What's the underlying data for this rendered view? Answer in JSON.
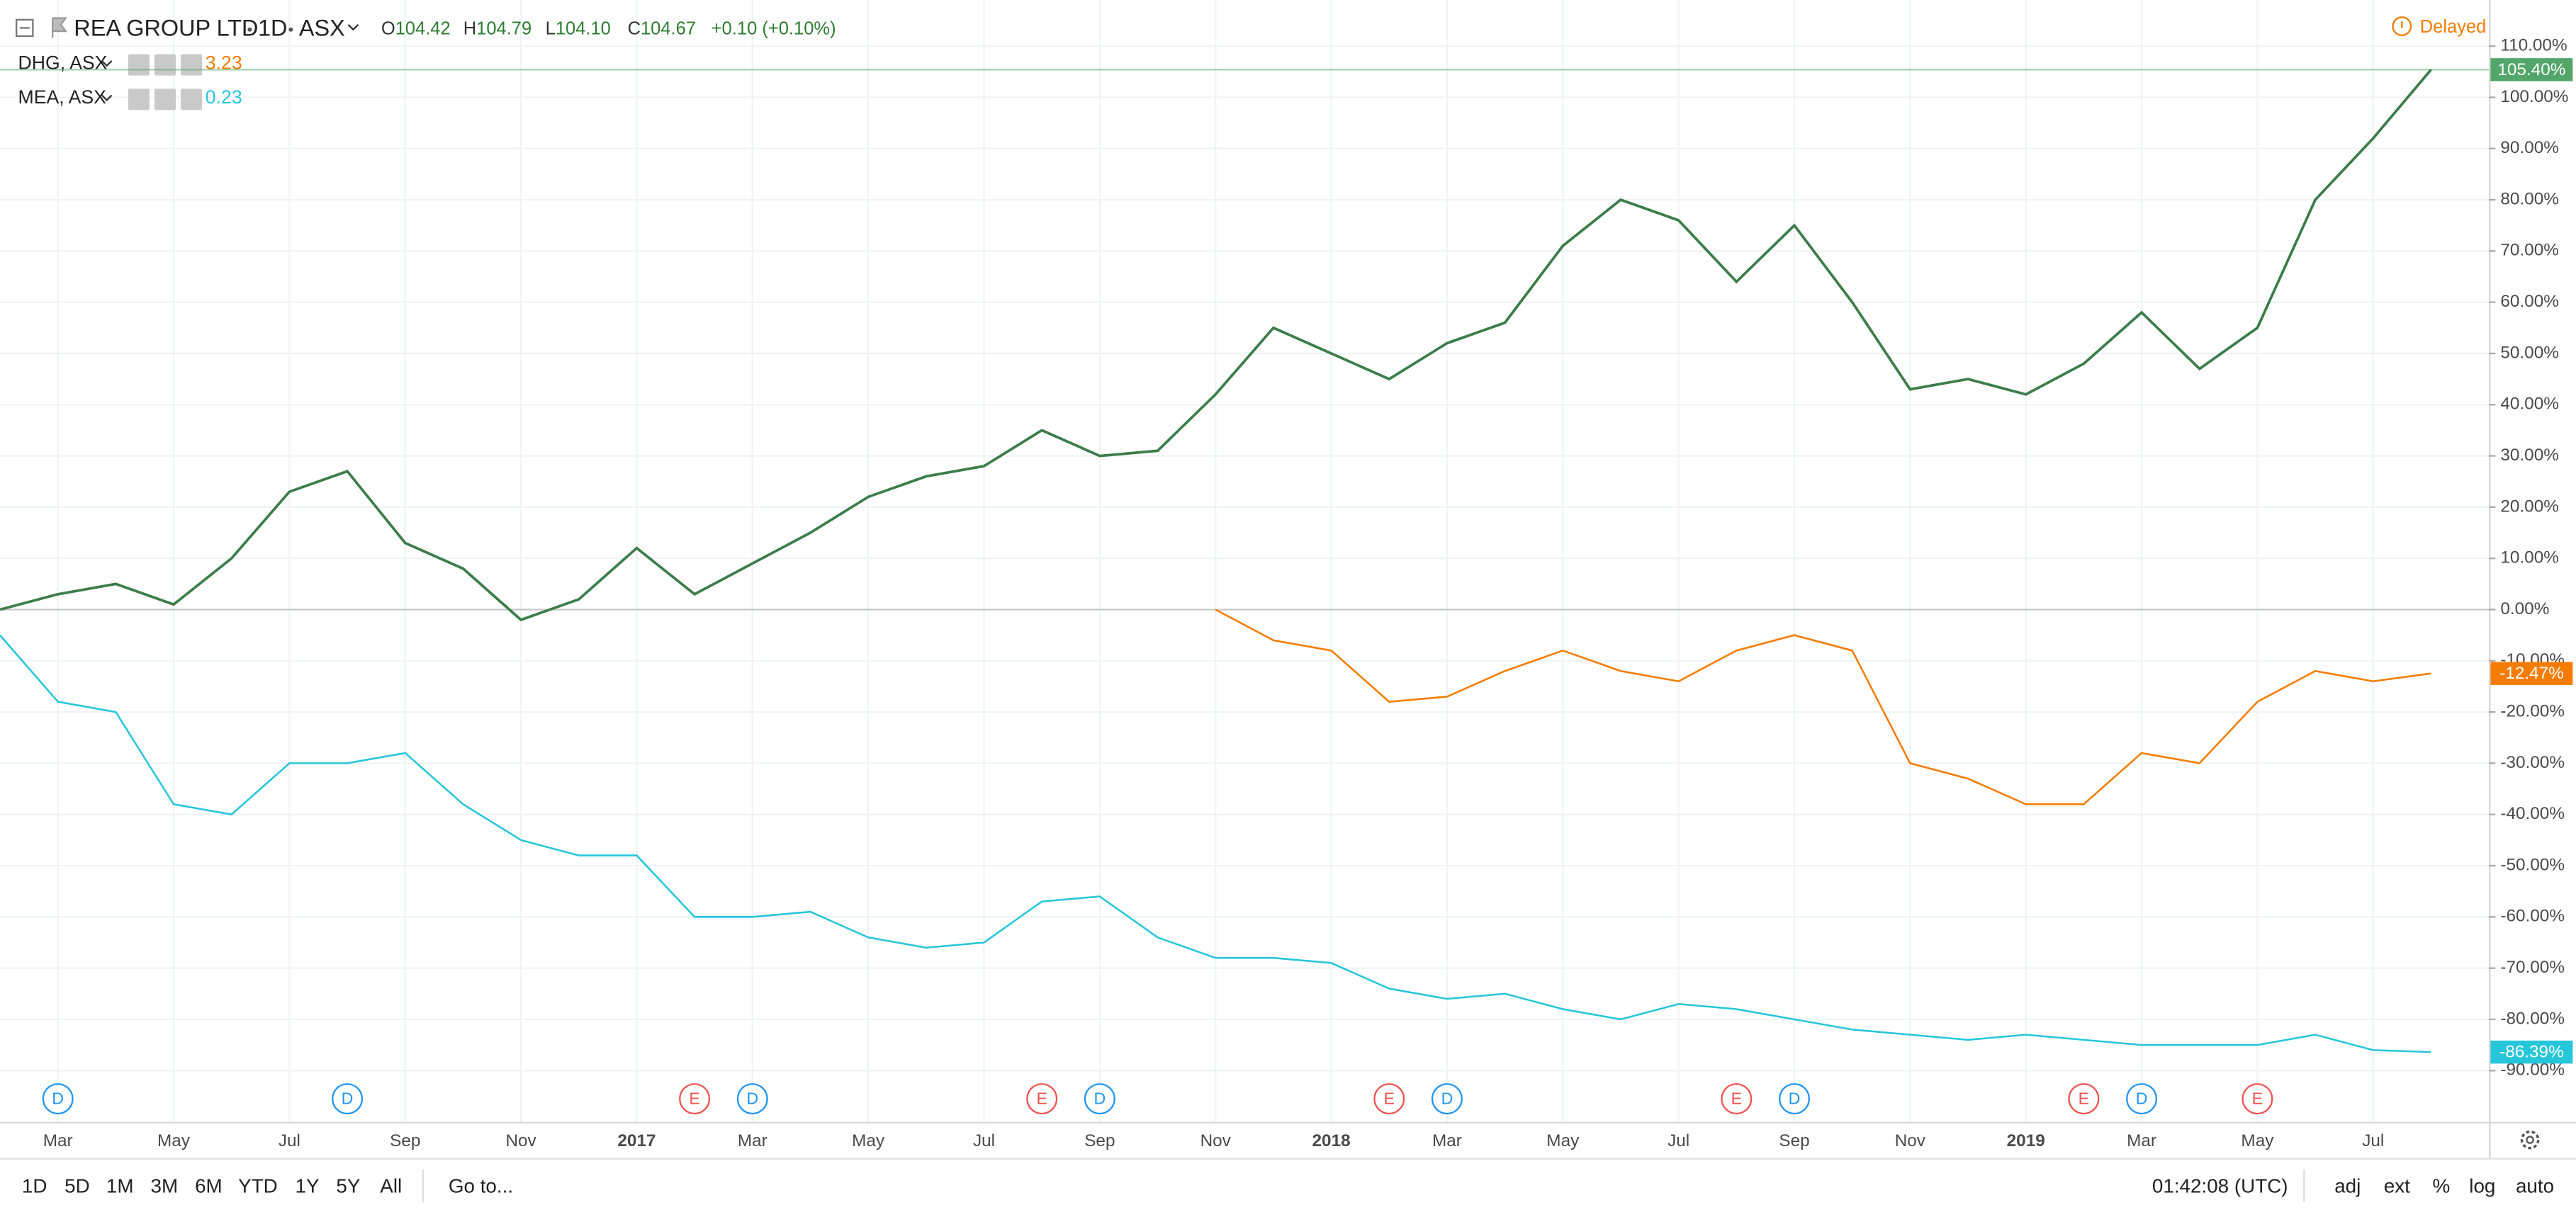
{
  "chart_data": {
    "type": "line",
    "title": "REA GROUP LTD",
    "interval": "1D",
    "exchange": "ASX",
    "ohlc": [
      {
        "label": "O",
        "value": "104.42"
      },
      {
        "label": "H",
        "value": "104.79"
      },
      {
        "label": "L",
        "value": "104.10"
      },
      {
        "label": "C",
        "value": "104.67"
      }
    ],
    "change": "+0.10 (+0.10%)",
    "status": "Delayed",
    "x": [
      "2016-02",
      "2016-03",
      "2016-04",
      "2016-05",
      "2016-06",
      "2016-07",
      "2016-08",
      "2016-09",
      "2016-10",
      "2016-11",
      "2016-12",
      "2017-01",
      "2017-02",
      "2017-03",
      "2017-04",
      "2017-05",
      "2017-06",
      "2017-07",
      "2017-08",
      "2017-09",
      "2017-10",
      "2017-11",
      "2017-12",
      "2018-01",
      "2018-02",
      "2018-03",
      "2018-04",
      "2018-05",
      "2018-06",
      "2018-07",
      "2018-08",
      "2018-09",
      "2018-10",
      "2018-11",
      "2018-12",
      "2019-01",
      "2019-02",
      "2019-03",
      "2019-04",
      "2019-05",
      "2019-06",
      "2019-07",
      "2019-08"
    ],
    "xlim": [
      "2016-02",
      "2019-09"
    ],
    "xticks": [
      {
        "value": "2016-03",
        "label": "Mar"
      },
      {
        "value": "2016-05",
        "label": "May"
      },
      {
        "value": "2016-07",
        "label": "Jul"
      },
      {
        "value": "2016-09",
        "label": "Sep"
      },
      {
        "value": "2016-11",
        "label": "Nov"
      },
      {
        "value": "2017-01",
        "label": "2017"
      },
      {
        "value": "2017-03",
        "label": "Mar"
      },
      {
        "value": "2017-05",
        "label": "May"
      },
      {
        "value": "2017-07",
        "label": "Jul"
      },
      {
        "value": "2017-09",
        "label": "Sep"
      },
      {
        "value": "2017-11",
        "label": "Nov"
      },
      {
        "value": "2018-01",
        "label": "2018"
      },
      {
        "value": "2018-03",
        "label": "Mar"
      },
      {
        "value": "2018-05",
        "label": "May"
      },
      {
        "value": "2018-07",
        "label": "Jul"
      },
      {
        "value": "2018-09",
        "label": "Sep"
      },
      {
        "value": "2018-11",
        "label": "Nov"
      },
      {
        "value": "2019-01",
        "label": "2019"
      },
      {
        "value": "2019-03",
        "label": "Mar"
      },
      {
        "value": "2019-05",
        "label": "May"
      },
      {
        "value": "2019-07",
        "label": "Jul"
      }
    ],
    "ylim": [
      -100,
      119
    ],
    "yticks": [
      {
        "value": 110,
        "label": "110.00%"
      },
      {
        "value": 100,
        "label": "100.00%"
      },
      {
        "value": 90,
        "label": "90.00%"
      },
      {
        "value": 80,
        "label": "80.00%"
      },
      {
        "value": 70,
        "label": "70.00%"
      },
      {
        "value": 60,
        "label": "60.00%"
      },
      {
        "value": 50,
        "label": "50.00%"
      },
      {
        "value": 40,
        "label": "40.00%"
      },
      {
        "value": 30,
        "label": "30.00%"
      },
      {
        "value": 20,
        "label": "20.00%"
      },
      {
        "value": 10,
        "label": "10.00%"
      },
      {
        "value": 0,
        "label": "0.00%"
      },
      {
        "value": -10,
        "label": "-10.00%"
      },
      {
        "value": -20,
        "label": "-20.00%"
      },
      {
        "value": -30,
        "label": "-30.00%"
      },
      {
        "value": -40,
        "label": "-40.00%"
      },
      {
        "value": -50,
        "label": "-50.00%"
      },
      {
        "value": -60,
        "label": "-60.00%"
      },
      {
        "value": -70,
        "label": "-70.00%"
      },
      {
        "value": -80,
        "label": "-80.00%"
      },
      {
        "value": -90,
        "label": "-90.00%"
      }
    ],
    "grid": true,
    "percent_scale": true,
    "series": [
      {
        "color": "#3b7d4a",
        "label_color": "#53a66a",
        "end_label": "105.40%",
        "values": [
          0,
          3,
          5,
          1,
          10,
          23,
          27,
          13,
          8,
          -2,
          2,
          12,
          3,
          9,
          15,
          22,
          26,
          28,
          35,
          30,
          31,
          42,
          55,
          50,
          45,
          52,
          56,
          71,
          80,
          76,
          64,
          75,
          60,
          43,
          45,
          42,
          48,
          58,
          47,
          55,
          80,
          92,
          105.4
        ]
      },
      {
        "name": "DHG, ASX",
        "price": "3.23",
        "color": "#f57c00",
        "label_color": "#f57c00",
        "end_label": "-12.47%",
        "values": [
          null,
          null,
          null,
          null,
          null,
          null,
          null,
          null,
          null,
          null,
          null,
          null,
          null,
          null,
          null,
          null,
          null,
          null,
          null,
          null,
          null,
          0,
          -6,
          -8,
          -18,
          -17,
          -12,
          -8,
          -12,
          -14,
          -8,
          -5,
          -8,
          -30,
          -33,
          -38,
          -38,
          -28,
          -30,
          -18,
          -12,
          -14,
          -12.47
        ]
      },
      {
        "name": "MEA, ASX",
        "price": "0.23",
        "color": "#26c6da",
        "label_color": "#26c6da",
        "end_label": "-86.39%",
        "values": [
          -5,
          -18,
          -20,
          -38,
          -40,
          -30,
          -30,
          -28,
          -38,
          -45,
          -48,
          -48,
          -60,
          -60,
          -59,
          -64,
          -66,
          -65,
          -57,
          -56,
          -64,
          -68,
          -68,
          -69,
          -74,
          -76,
          -75,
          -78,
          -80,
          -77,
          -78,
          -80,
          -82,
          -83,
          -84,
          -83,
          -84,
          -85,
          -85,
          -85,
          -83,
          -86,
          -86.39
        ]
      }
    ],
    "events": [
      {
        "label": "D",
        "x": "2016-03"
      },
      {
        "label": "D",
        "x": "2016-08"
      },
      {
        "label": "E",
        "x": "2017-02"
      },
      {
        "label": "D",
        "x": "2017-03"
      },
      {
        "label": "E",
        "x": "2017-08"
      },
      {
        "label": "D",
        "x": "2017-09"
      },
      {
        "label": "E",
        "x": "2018-02"
      },
      {
        "label": "D",
        "x": "2018-03"
      },
      {
        "label": "E",
        "x": "2018-08"
      },
      {
        "label": "D",
        "x": "2018-09"
      },
      {
        "label": "E",
        "x": "2019-02"
      },
      {
        "label": "D",
        "x": "2019-03"
      },
      {
        "label": "E",
        "x": "2019-05"
      }
    ]
  },
  "toolbar": {
    "ranges": [
      "1D",
      "5D",
      "1M",
      "3M",
      "6M",
      "YTD",
      "1Y",
      "5Y",
      "All"
    ],
    "goto": "Go to...",
    "time": "01:42:08 (UTC)",
    "options": [
      "adj",
      "ext",
      "%",
      "log",
      "auto"
    ]
  }
}
